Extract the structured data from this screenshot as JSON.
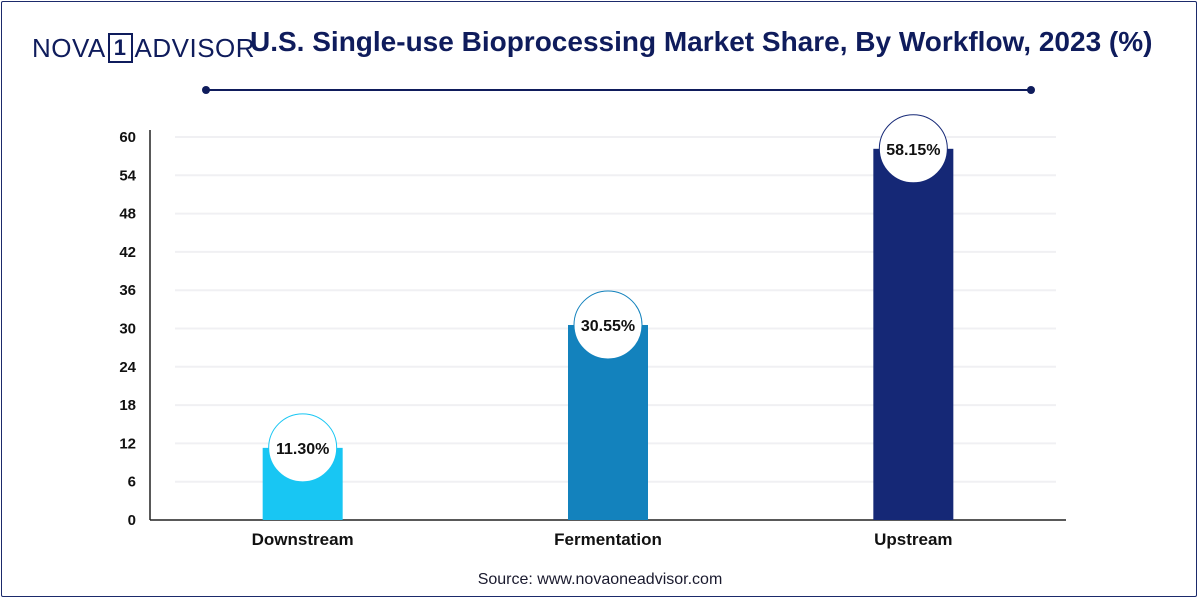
{
  "brand": {
    "part1": "NOVA",
    "part2": "1",
    "part3": "ADVISOR"
  },
  "title": "U.S. Single-use Bioprocessing Market Share, By Workflow, 2023 (%)",
  "source": "Source: www.novaoneadvisor.com",
  "chart_data": {
    "type": "bar",
    "categories": [
      "Downstream",
      "Fermentation",
      "Upstream"
    ],
    "values": [
      11.3,
      30.55,
      58.15
    ],
    "value_labels": [
      "11.30%",
      "30.55%",
      "58.15%"
    ],
    "colors": [
      "#18c6f3",
      "#1382bd",
      "#152876"
    ],
    "y_ticks": [
      "0",
      "6",
      "12",
      "18",
      "24",
      "30",
      "36",
      "42",
      "48",
      "54",
      "60"
    ],
    "ylim": [
      0,
      60
    ],
    "xlabel": "",
    "ylabel": "",
    "grid": true
  }
}
